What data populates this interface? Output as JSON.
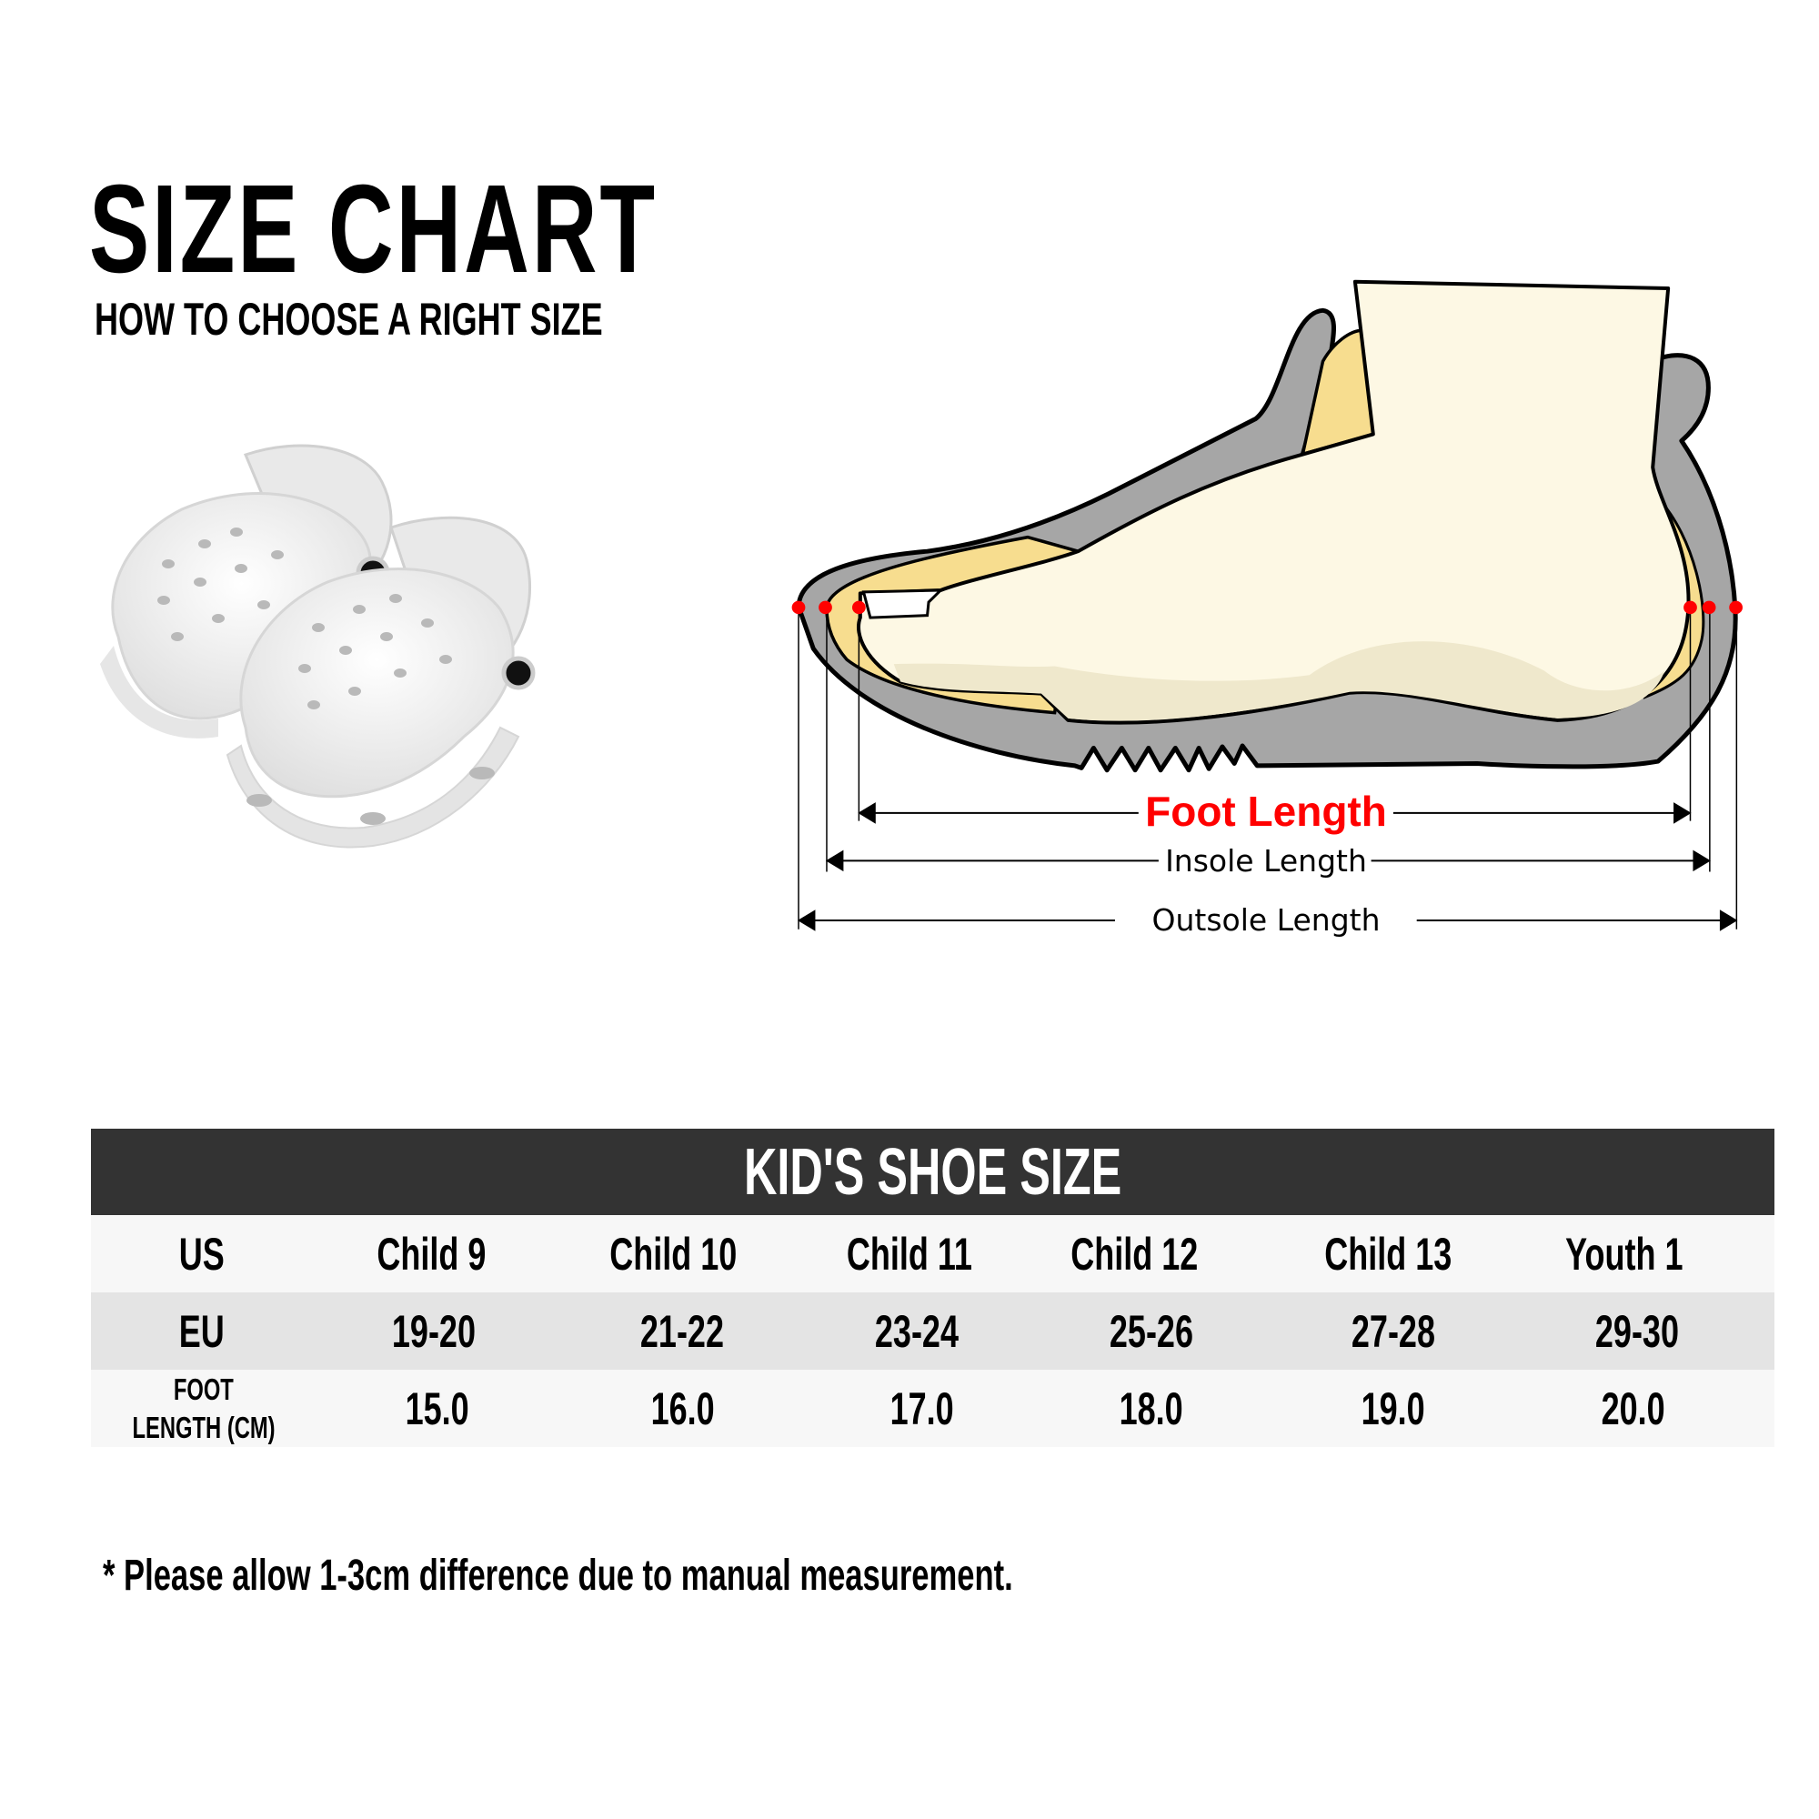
{
  "header": {
    "title": "SIZE CHART",
    "subtitle": "HOW TO CHOOSE A RIGHT SIZE"
  },
  "diagram": {
    "foot_length_label": "Foot Length",
    "insole_length_label": "Insole Length",
    "outsole_length_label": "Outsole Length",
    "colors": {
      "foot_length": "#ff0000",
      "shoe_gray": "#a6a6a6",
      "insole_yellow": "#f7dd8f",
      "foot_cream": "#fdf8e4",
      "marker_red": "#ff0000"
    }
  },
  "table": {
    "title": "KID'S SHOE SIZE",
    "header_color": "#333333",
    "rows": [
      {
        "label": "US",
        "values": [
          "Child 9",
          "Child 10",
          "Child 11",
          "Child 12",
          "Child 13",
          "Youth 1"
        ]
      },
      {
        "label": "EU",
        "values": [
          "19-20",
          "21-22",
          "23-24",
          "25-26",
          "27-28",
          "29-30"
        ]
      },
      {
        "label_line1": "FOOT",
        "label_line2": "LENGTH (CM)",
        "values": [
          "15.0",
          "16.0",
          "17.0",
          "18.0",
          "19.0",
          "20.0"
        ]
      }
    ]
  },
  "footnote": "* Please allow 1-3cm difference due to manual measurement."
}
